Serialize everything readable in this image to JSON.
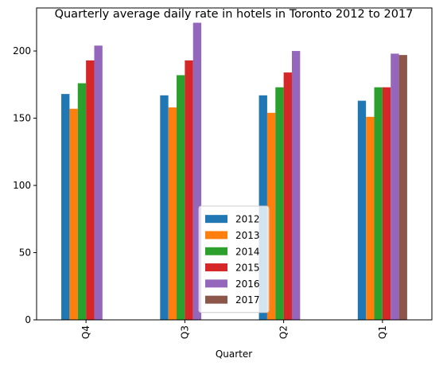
{
  "chart_data": {
    "type": "bar",
    "title": "Quarterly average daily rate in hotels in Toronto 2012 to 2017",
    "xlabel": "Quarter",
    "ylabel": "",
    "categories": [
      "Q4",
      "Q3",
      "Q2",
      "Q1"
    ],
    "series": [
      {
        "name": "2012",
        "color": "#1f77b4",
        "values": [
          168,
          167,
          167,
          163
        ]
      },
      {
        "name": "2013",
        "color": "#ff7f0e",
        "values": [
          157,
          158,
          154,
          151
        ]
      },
      {
        "name": "2014",
        "color": "#2ca02c",
        "values": [
          176,
          182,
          173,
          173
        ]
      },
      {
        "name": "2015",
        "color": "#d62728",
        "values": [
          193,
          193,
          184,
          173
        ]
      },
      {
        "name": "2016",
        "color": "#9467bd",
        "values": [
          204,
          221,
          200,
          198
        ]
      },
      {
        "name": "2017",
        "color": "#8c564b",
        "values": [
          null,
          null,
          null,
          197
        ]
      }
    ],
    "ylim": [
      0,
      232
    ],
    "yticks": [
      0,
      50,
      100,
      150,
      200
    ],
    "grid": false,
    "legend_position": "lower-center"
  }
}
